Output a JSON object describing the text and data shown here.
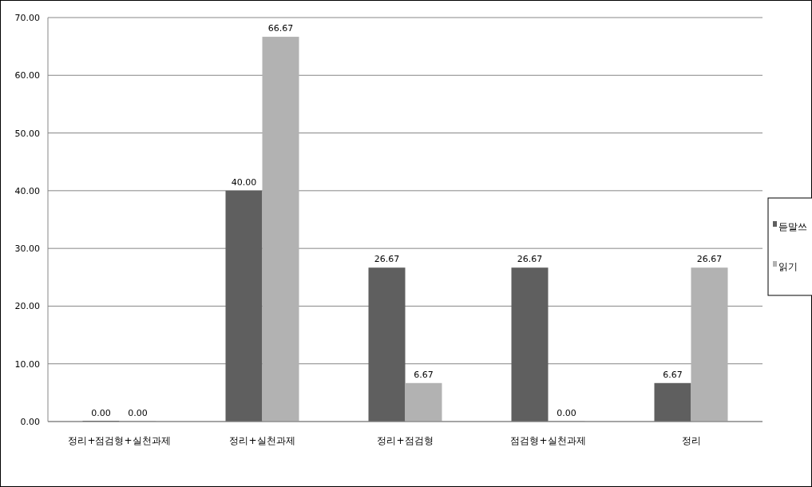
{
  "chart_data": {
    "type": "bar",
    "categories": [
      "정리+점검형+실천과제",
      "정리+실천과제",
      "정리+점검형",
      "점검형+실천과제",
      "정리"
    ],
    "series": [
      {
        "name": "듣말쓰",
        "color": "#5f5f5f",
        "values": [
          0,
          40,
          26.67,
          26.67,
          6.67
        ],
        "value_labels": [
          "0.00",
          "40.00",
          "26.67",
          "26.67",
          "6.67"
        ]
      },
      {
        "name": "읽기",
        "color": "#b2b2b2",
        "values": [
          0,
          66.67,
          6.67,
          0,
          26.67
        ],
        "value_labels": [
          "0.00",
          "66.67",
          "6.67",
          "0.00",
          "26.67"
        ]
      }
    ],
    "ylim": [
      0,
      70
    ],
    "yticks": [
      {
        "value": 0,
        "label": "0.00"
      },
      {
        "value": 10,
        "label": "10.00"
      },
      {
        "value": 20,
        "label": "20.00"
      },
      {
        "value": 30,
        "label": "30.00"
      },
      {
        "value": 40,
        "label": "40.00"
      },
      {
        "value": 50,
        "label": "50.00"
      },
      {
        "value": 60,
        "label": "60.00"
      },
      {
        "value": 70,
        "label": "70.00"
      }
    ],
    "grid": "y",
    "legend": "right"
  }
}
